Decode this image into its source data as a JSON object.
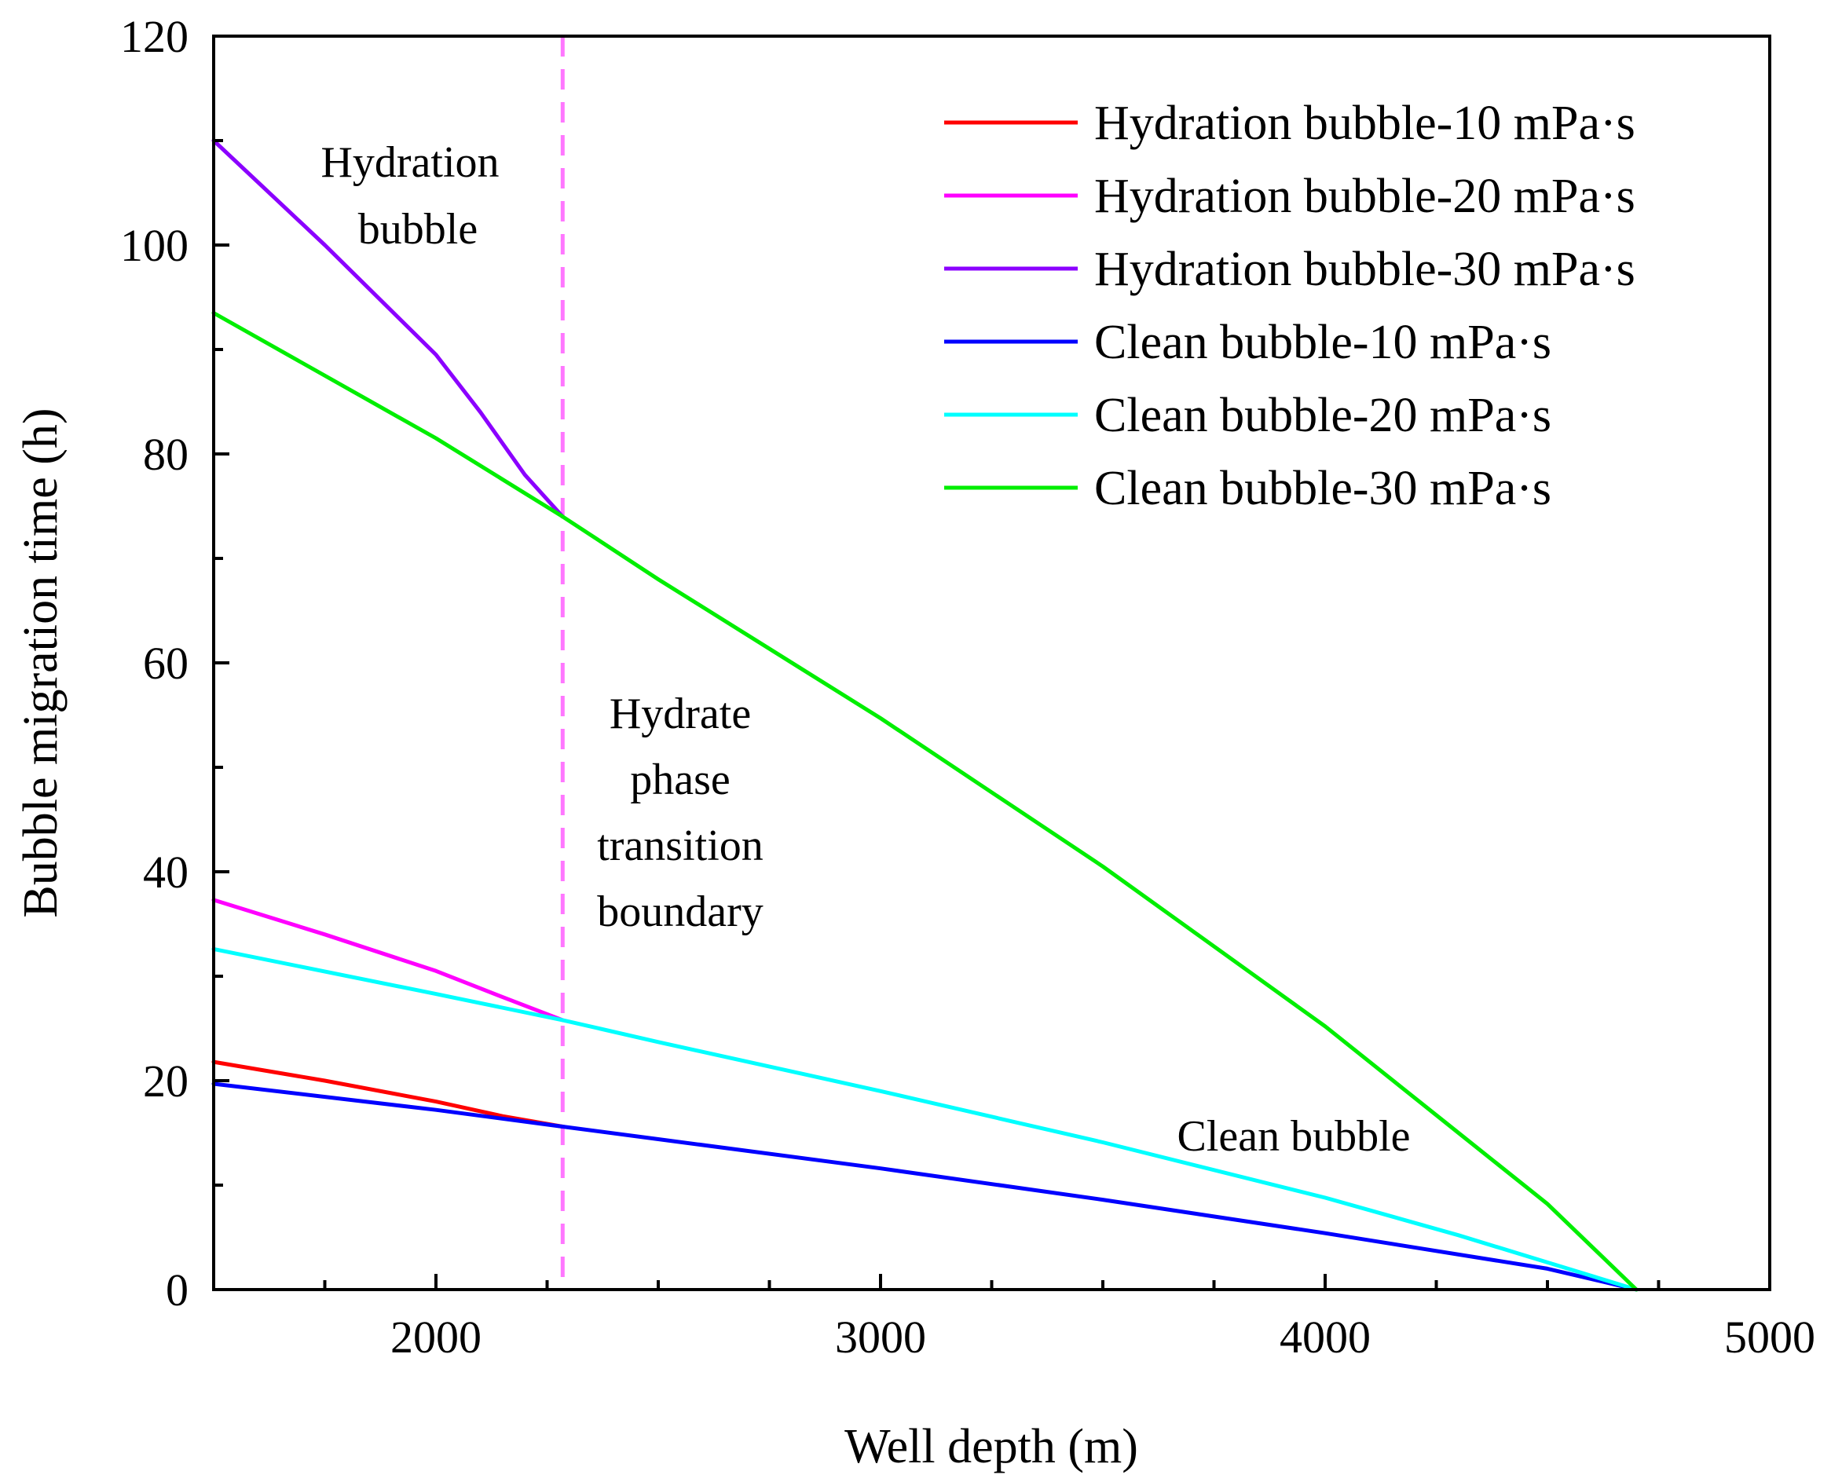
{
  "chart_data": {
    "type": "line",
    "xlabel": "Well depth (m)",
    "ylabel": "Bubble migration time (h)",
    "xlim": [
      1500,
      5000
    ],
    "ylim": [
      0,
      120
    ],
    "x_ticks": [
      2000,
      3000,
      4000,
      5000
    ],
    "y_ticks": [
      0,
      20,
      40,
      60,
      80,
      100,
      120
    ],
    "grid": false,
    "legend_position": "top-right",
    "series": [
      {
        "name": "Hydration bubble-10 mPa·s",
        "color": "#ff0000",
        "points": [
          [
            1500,
            21.8
          ],
          [
            1750,
            20.0
          ],
          [
            2000,
            18.0
          ],
          [
            2150,
            16.6
          ],
          [
            2285,
            15.6
          ]
        ]
      },
      {
        "name": "Hydration bubble-20 mPa·s",
        "color": "#ff00ff",
        "points": [
          [
            1500,
            37.3
          ],
          [
            1750,
            34.0
          ],
          [
            2000,
            30.5
          ],
          [
            2150,
            28.0
          ],
          [
            2285,
            25.8
          ]
        ]
      },
      {
        "name": "Hydration bubble-30 mPa·s",
        "color": "#8b00ff",
        "points": [
          [
            1500,
            110.0
          ],
          [
            1750,
            100.0
          ],
          [
            2000,
            89.5
          ],
          [
            2100,
            84.0
          ],
          [
            2200,
            78.0
          ],
          [
            2285,
            74.0
          ]
        ]
      },
      {
        "name": "Clean bubble-10 mPa·s",
        "color": "#0000ff",
        "points": [
          [
            1500,
            19.7
          ],
          [
            2000,
            17.2
          ],
          [
            2285,
            15.6
          ],
          [
            2500,
            14.4
          ],
          [
            3000,
            11.6
          ],
          [
            3500,
            8.6
          ],
          [
            4000,
            5.4
          ],
          [
            4500,
            2.0
          ],
          [
            4700,
            0.0
          ]
        ]
      },
      {
        "name": "Clean bubble-20 mPa·s",
        "color": "#00ffff",
        "points": [
          [
            1500,
            32.6
          ],
          [
            2000,
            28.3
          ],
          [
            2285,
            25.8
          ],
          [
            2500,
            23.7
          ],
          [
            3000,
            19.0
          ],
          [
            3500,
            14.1
          ],
          [
            4000,
            8.8
          ],
          [
            4300,
            5.2
          ],
          [
            4500,
            2.6
          ],
          [
            4700,
            0.0
          ]
        ]
      },
      {
        "name": "Clean bubble-30 mPa·s",
        "color": "#00ee00",
        "points": [
          [
            1500,
            93.5
          ],
          [
            2000,
            81.5
          ],
          [
            2285,
            74.0
          ],
          [
            2500,
            68.0
          ],
          [
            3000,
            54.7
          ],
          [
            3500,
            40.5
          ],
          [
            4000,
            25.2
          ],
          [
            4300,
            15.0
          ],
          [
            4500,
            8.2
          ],
          [
            4700,
            0.0
          ]
        ]
      }
    ],
    "reference_line": {
      "x": 2285,
      "color": "#ff77ff",
      "style": "dashed"
    },
    "annotations": {
      "hydration_region": [
        "Hydration",
        "bubble"
      ],
      "phase_boundary": [
        "Hydrate",
        "phase",
        "transition",
        "boundary"
      ],
      "clean_region": [
        "Clean bubble"
      ]
    }
  }
}
